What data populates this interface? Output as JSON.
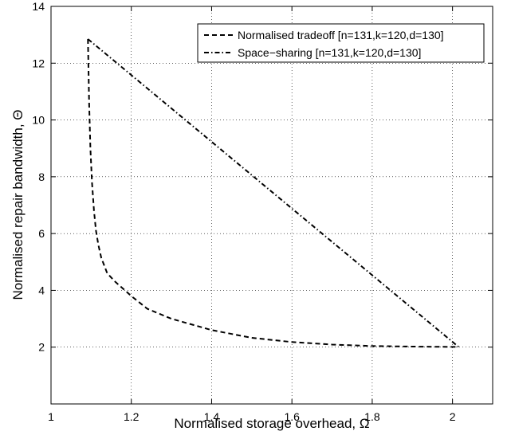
{
  "chart_data": {
    "type": "line",
    "title": "",
    "xlabel": "Normalised storage overhead, Ω",
    "ylabel": "Normalised repair bandwidth, Θ",
    "xlim": [
      1,
      2.1
    ],
    "ylim": [
      0,
      14
    ],
    "xticks": [
      1,
      1.2,
      1.4,
      1.6,
      1.8,
      2
    ],
    "xtick_labels": [
      "1",
      "1.2",
      "1.4",
      "1.6",
      "1.8",
      "2"
    ],
    "yticks": [
      2,
      4,
      6,
      8,
      10,
      12,
      14
    ],
    "ytick_labels": [
      "2",
      "4",
      "6",
      "8",
      "10",
      "12",
      "14"
    ],
    "grid": true,
    "legend_position": "top-right",
    "series": [
      {
        "name": "Normalised tradeoff [n=131,k=120,d=130]",
        "style": "dashed",
        "color": "#000000",
        "x": [
          1.092,
          1.095,
          1.098,
          1.102,
          1.107,
          1.112,
          1.118,
          1.125,
          1.14,
          1.16,
          1.18,
          1.2,
          1.24,
          1.3,
          1.4,
          1.5,
          1.6,
          1.7,
          1.8,
          1.9,
          2.0,
          2.015
        ],
        "y": [
          12.85,
          10.6,
          9.0,
          7.8,
          6.8,
          6.1,
          5.6,
          5.15,
          4.6,
          4.3,
          4.05,
          3.8,
          3.35,
          3.0,
          2.6,
          2.33,
          2.18,
          2.09,
          2.04,
          2.02,
          2.01,
          2.01
        ]
      },
      {
        "name": "Space−sharing [n=131,k=120,d=130]",
        "style": "dashdot",
        "color": "#000000",
        "x": [
          1.092,
          2.015
        ],
        "y": [
          12.85,
          2.01
        ]
      }
    ]
  }
}
